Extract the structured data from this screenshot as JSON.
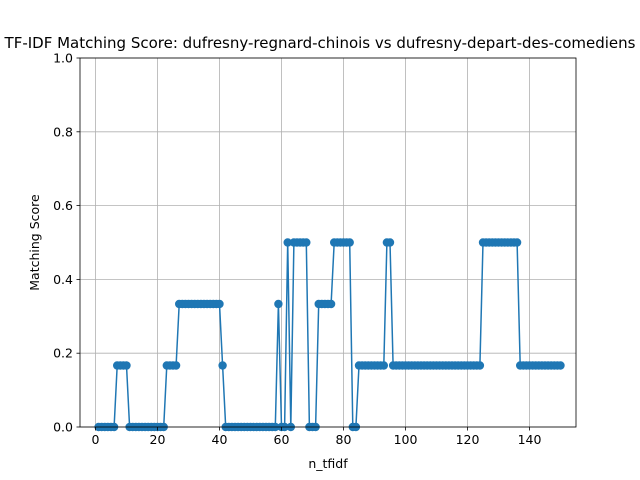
{
  "chart_data": {
    "type": "line",
    "title": "TF-IDF Matching Score: dufresny-regnard-chinois vs dufresny-depart-des-comediens",
    "xlabel": "n_tfidf",
    "ylabel": "Matching Score",
    "xlim": [
      -5,
      155
    ],
    "ylim": [
      0,
      1
    ],
    "xticks": [
      0,
      20,
      40,
      60,
      80,
      100,
      120,
      140
    ],
    "yticks": [
      0.0,
      0.2,
      0.4,
      0.6,
      0.8,
      1.0
    ],
    "xtick_labels": [
      "0",
      "20",
      "40",
      "60",
      "80",
      "100",
      "120",
      "140"
    ],
    "ytick_labels": [
      "0.0",
      "0.2",
      "0.4",
      "0.6",
      "0.8",
      "1.0"
    ],
    "grid": true,
    "series": [
      {
        "color": "#1f77b4",
        "marker": "circle",
        "x": [
          1,
          2,
          3,
          4,
          5,
          6,
          7,
          8,
          9,
          10,
          11,
          12,
          13,
          14,
          15,
          16,
          17,
          18,
          19,
          20,
          21,
          22,
          23,
          24,
          25,
          26,
          27,
          28,
          29,
          30,
          31,
          32,
          33,
          34,
          35,
          36,
          37,
          38,
          39,
          40,
          41,
          42,
          43,
          44,
          45,
          46,
          47,
          48,
          49,
          50,
          51,
          52,
          53,
          54,
          55,
          56,
          57,
          58,
          59,
          60,
          61,
          62,
          63,
          64,
          65,
          66,
          67,
          68,
          69,
          70,
          71,
          72,
          73,
          74,
          75,
          76,
          77,
          78,
          79,
          80,
          81,
          82,
          83,
          84,
          85,
          86,
          87,
          88,
          89,
          90,
          91,
          92,
          93,
          94,
          95,
          96,
          97,
          98,
          99,
          100,
          101,
          102,
          103,
          104,
          105,
          106,
          107,
          108,
          109,
          110,
          111,
          112,
          113,
          114,
          115,
          116,
          117,
          118,
          119,
          120,
          121,
          122,
          123,
          124,
          125,
          126,
          127,
          128,
          129,
          130,
          131,
          132,
          133,
          134,
          135,
          136,
          137,
          138,
          139,
          140,
          141,
          142,
          143,
          144,
          145,
          146,
          147,
          148,
          149,
          150
        ],
        "y": [
          0,
          0,
          0,
          0,
          0,
          0,
          0.1667,
          0.1667,
          0.1667,
          0.1667,
          0,
          0,
          0,
          0,
          0,
          0,
          0,
          0,
          0,
          0,
          0,
          0,
          0.1667,
          0.1667,
          0.1667,
          0.1667,
          0.3333,
          0.3333,
          0.3333,
          0.3333,
          0.3333,
          0.3333,
          0.3333,
          0.3333,
          0.3333,
          0.3333,
          0.3333,
          0.3333,
          0.3333,
          0.3333,
          0.1667,
          0,
          0,
          0,
          0,
          0,
          0,
          0,
          0,
          0,
          0,
          0,
          0,
          0,
          0,
          0,
          0,
          0,
          0.3333,
          0,
          0,
          0.5,
          0,
          0.5,
          0.5,
          0.5,
          0.5,
          0.5,
          0,
          0,
          0,
          0.3333,
          0.3333,
          0.3333,
          0.3333,
          0.3333,
          0.5,
          0.5,
          0.5,
          0.5,
          0.5,
          0.5,
          0,
          0,
          0.1667,
          0.1667,
          0.1667,
          0.1667,
          0.1667,
          0.1667,
          0.1667,
          0.1667,
          0.1667,
          0.5,
          0.5,
          0.1667,
          0.1667,
          0.1667,
          0.1667,
          0.1667,
          0.1667,
          0.1667,
          0.1667,
          0.1667,
          0.1667,
          0.1667,
          0.1667,
          0.1667,
          0.1667,
          0.1667,
          0.1667,
          0.1667,
          0.1667,
          0.1667,
          0.1667,
          0.1667,
          0.1667,
          0.1667,
          0.1667,
          0.1667,
          0.1667,
          0.1667,
          0.1667,
          0.1667,
          0.5,
          0.5,
          0.5,
          0.5,
          0.5,
          0.5,
          0.5,
          0.5,
          0.5,
          0.5,
          0.5,
          0.5,
          0.1667,
          0.1667,
          0.1667,
          0.1667,
          0.1667,
          0.1667,
          0.1667,
          0.1667,
          0.1667,
          0.1667,
          0.1667,
          0.1667,
          0.1667,
          0.1667
        ]
      }
    ]
  }
}
